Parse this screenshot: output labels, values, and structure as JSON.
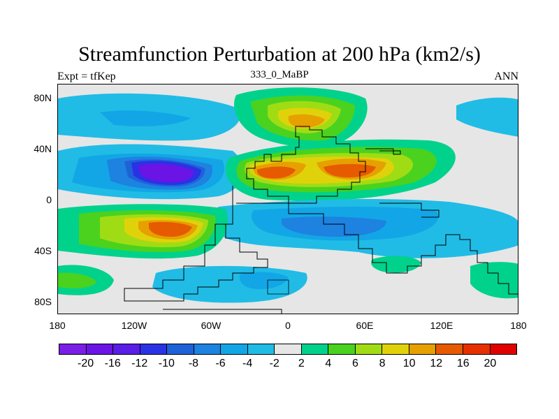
{
  "title": "Streamfunction Perturbation at 200 hPa (km2/s)",
  "left_label": "Expt = tfKep",
  "center_label": "333_0_MaBP",
  "right_label": "ANN",
  "y_ticks": [
    "80N",
    "40N",
    "0",
    "40S",
    "80S"
  ],
  "x_ticks": [
    "180",
    "120W",
    "60W",
    "0",
    "60E",
    "120E",
    "180"
  ],
  "colorbar": {
    "labels": [
      "-20",
      "-16",
      "-12",
      "-10",
      "-8",
      "-6",
      "-4",
      "-2",
      "2",
      "4",
      "6",
      "8",
      "10",
      "12",
      "16",
      "20"
    ],
    "colors": [
      "#7b1ee6",
      "#6a14e6",
      "#5a1ee6",
      "#2a32e6",
      "#1e62d8",
      "#1e82e0",
      "#12a6e6",
      "#20bce6",
      "#e6e6e6",
      "#00d28c",
      "#4ad21e",
      "#a0dc14",
      "#e0d20a",
      "#e6a000",
      "#e65a00",
      "#e63000",
      "#e00000"
    ]
  },
  "colors": {
    "background": "#e6e6e6",
    "outline": "#000000"
  }
}
